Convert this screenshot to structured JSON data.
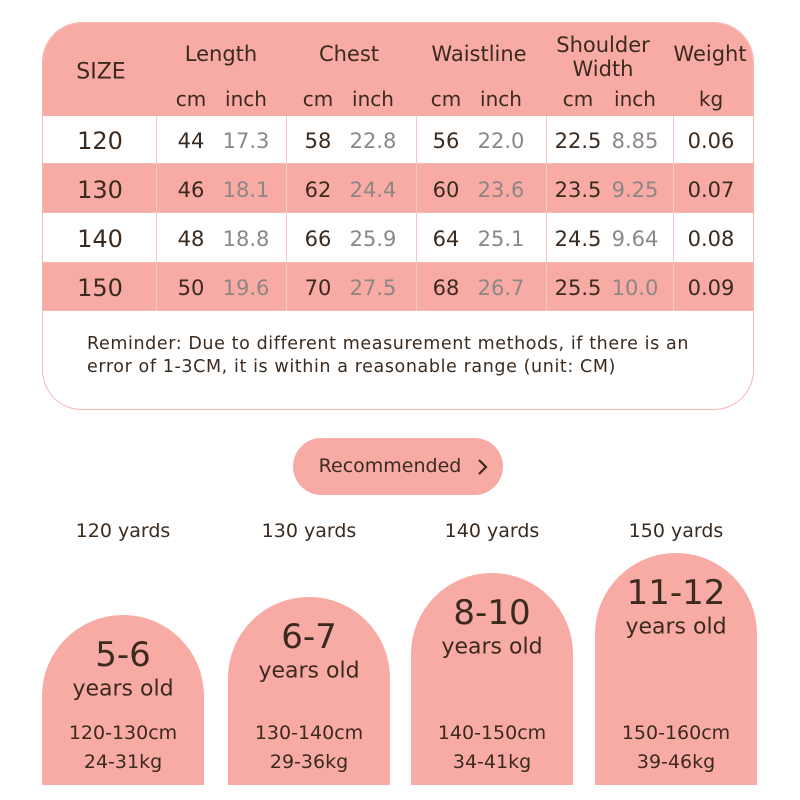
{
  "table": {
    "size_header": "SIZE",
    "columns": [
      {
        "name": "Length",
        "units": [
          "cm",
          "inch"
        ]
      },
      {
        "name": "Chest",
        "units": [
          "cm",
          "inch"
        ]
      },
      {
        "name": "Waistline",
        "units": [
          "cm",
          "inch"
        ]
      },
      {
        "name": "Shoulder Width",
        "units": [
          "cm",
          "inch"
        ]
      },
      {
        "name": "Weight",
        "units": [
          "kg"
        ]
      }
    ],
    "rows": [
      [
        "120",
        "44",
        "17.3",
        "58",
        "22.8",
        "56",
        "22.0",
        "22.5",
        "8.85",
        "0.06"
      ],
      [
        "130",
        "46",
        "18.1",
        "62",
        "24.4",
        "60",
        "23.6",
        "23.5",
        "9.25",
        "0.07"
      ],
      [
        "140",
        "48",
        "18.8",
        "66",
        "25.9",
        "64",
        "25.1",
        "24.5",
        "9.64",
        "0.08"
      ],
      [
        "150",
        "50",
        "19.6",
        "70",
        "27.5",
        "68",
        "26.7",
        "25.5",
        "10.0",
        "0.09"
      ]
    ],
    "reminder": "Reminder: Due to different measurement methods, if there is an error of 1-3CM, it is within a reasonable range (unit: CM)"
  },
  "recommended": {
    "button": "Recommended",
    "cards": [
      {
        "yards": "120 yards",
        "age": "5-6",
        "age_unit": "years old",
        "height": "120-130cm",
        "weight": "24-31kg"
      },
      {
        "yards": "130 yards",
        "age": "6-7",
        "age_unit": "years old",
        "height": "130-140cm",
        "weight": "29-36kg"
      },
      {
        "yards": "140 yards",
        "age": "8-10",
        "age_unit": "years old",
        "height": "140-150cm",
        "weight": "34-41kg"
      },
      {
        "yards": "150 yards",
        "age": "11-12",
        "age_unit": "years old",
        "height": "150-160cm",
        "weight": "39-46kg"
      }
    ]
  }
}
